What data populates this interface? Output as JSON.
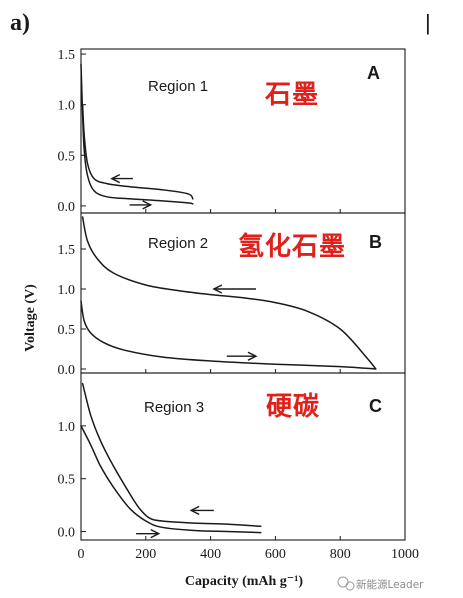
{
  "figure_label": "a)",
  "corner_mark": "|",
  "watermark": "新能源Leader",
  "xlabel": "Capacity (mAh g⁻¹)",
  "ylabel": "Voltage (V)",
  "colors": {
    "annotation": "#e0211b",
    "ink": "#1a1a1a"
  },
  "chart_data": [
    {
      "type": "line",
      "panel": "A",
      "region": "Region 1",
      "annotation": "石墨",
      "xlim": [
        0,
        1000
      ],
      "ylim": [
        -0.07,
        1.55
      ],
      "y_ticks": [
        "0.0",
        "0.5",
        "1.0",
        "1.5"
      ],
      "series": [
        {
          "direction": "discharge",
          "x": [
            0,
            5,
            10,
            20,
            40,
            80,
            150,
            250,
            330,
            345
          ],
          "y": [
            1.4,
            0.9,
            0.55,
            0.3,
            0.15,
            0.09,
            0.07,
            0.05,
            0.03,
            0.02
          ]
        },
        {
          "direction": "charge",
          "x": [
            345,
            330,
            250,
            150,
            80,
            40,
            20,
            10,
            5
          ],
          "y": [
            0.07,
            0.12,
            0.16,
            0.19,
            0.22,
            0.27,
            0.42,
            0.7,
            1.0
          ]
        }
      ],
      "arrows": [
        {
          "x": [
            160,
            95
          ],
          "y": [
            0.27,
            0.27
          ]
        },
        {
          "x": [
            150,
            215
          ],
          "y": [
            0.01,
            0.01
          ]
        }
      ]
    },
    {
      "type": "line",
      "panel": "B",
      "region": "Region 2",
      "annotation": "氢化石墨",
      "ylim": [
        -0.05,
        1.95
      ],
      "y_ticks": [
        "0.0",
        "0.5",
        "1.0",
        "1.5"
      ],
      "series": [
        {
          "direction": "discharge",
          "x": [
            0,
            10,
            30,
            70,
            130,
            250,
            400,
            600,
            800,
            910
          ],
          "y": [
            0.85,
            0.6,
            0.45,
            0.33,
            0.24,
            0.15,
            0.1,
            0.06,
            0.03,
            0.0
          ]
        },
        {
          "direction": "charge",
          "x": [
            910,
            880,
            800,
            700,
            600,
            500,
            400,
            300,
            200,
            100,
            50,
            20,
            5
          ],
          "y": [
            0.0,
            0.15,
            0.5,
            0.72,
            0.83,
            0.89,
            0.93,
            0.98,
            1.05,
            1.2,
            1.38,
            1.6,
            1.9
          ]
        }
      ],
      "arrows": [
        {
          "x": [
            540,
            410
          ],
          "y": [
            1.0,
            1.0
          ]
        },
        {
          "x": [
            450,
            540
          ],
          "y": [
            0.16,
            0.16
          ]
        }
      ]
    },
    {
      "type": "line",
      "panel": "C",
      "region": "Region 3",
      "annotation": "硬碳",
      "ylim": [
        -0.08,
        1.5
      ],
      "y_ticks": [
        "0.0",
        "0.5",
        "1.0"
      ],
      "x_ticks": [
        "0",
        "200",
        "400",
        "600",
        "800",
        "1000"
      ],
      "series": [
        {
          "direction": "discharge",
          "x": [
            0,
            30,
            60,
            100,
            150,
            200,
            250,
            350,
            450,
            555
          ],
          "y": [
            1.0,
            0.82,
            0.62,
            0.42,
            0.22,
            0.1,
            0.04,
            0.01,
            0.0,
            -0.01
          ]
        },
        {
          "direction": "charge",
          "x": [
            555,
            450,
            350,
            250,
            210,
            180,
            150,
            100,
            60,
            30,
            5
          ],
          "y": [
            0.05,
            0.07,
            0.08,
            0.1,
            0.13,
            0.22,
            0.36,
            0.62,
            0.86,
            1.1,
            1.4
          ]
        }
      ],
      "arrows": [
        {
          "x": [
            410,
            340
          ],
          "y": [
            0.2,
            0.2
          ]
        },
        {
          "x": [
            170,
            240
          ],
          "y": [
            -0.02,
            -0.02
          ]
        }
      ]
    }
  ]
}
